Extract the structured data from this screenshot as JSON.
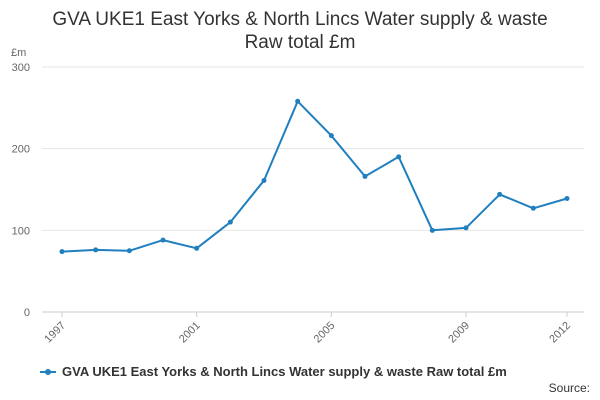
{
  "colors": {
    "series": "#1f7fbf",
    "grid": "#e6e6e6",
    "axis": "#cccccc"
  },
  "source_label": "Source:",
  "chart_data": {
    "type": "line",
    "title": [
      "GVA UKE1 East Yorks & North Lincs Water supply & waste",
      "Raw total £m"
    ],
    "y_unit": "£m",
    "xlabel": "",
    "ylabel": "",
    "xlim": [
      1997,
      2012
    ],
    "ylim": [
      0,
      300
    ],
    "x_ticks": [
      "1997",
      "2001",
      "2005",
      "2009",
      "2012"
    ],
    "y_ticks": [
      "0",
      "100",
      "200",
      "300"
    ],
    "grid": true,
    "legend": "bottom",
    "series": [
      {
        "name": "GVA UKE1 East Yorks & North Lincs Water supply & waste Raw total £m",
        "x": [
          1997,
          1998,
          1999,
          2000,
          2001,
          2002,
          2003,
          2004,
          2005,
          2006,
          2007,
          2008,
          2009,
          2010,
          2011,
          2012
        ],
        "values": [
          74,
          76,
          75,
          88,
          78,
          110,
          161,
          258,
          216,
          166,
          190,
          100,
          103,
          144,
          127,
          139
        ]
      }
    ]
  }
}
